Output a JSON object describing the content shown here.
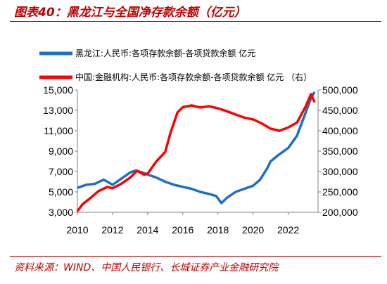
{
  "figure": {
    "title": "图表40：黑龙江与全国净存款余额（亿元）",
    "source": "资料来源：WIND、中国人民银行、长城证券产业金融研究院"
  },
  "chart_data": {
    "type": "line",
    "title": "",
    "xlabel": "",
    "ylabel": "",
    "grid": false,
    "legend_position": "top-left",
    "x_ticks": [
      "2010",
      "2012",
      "2014",
      "2016",
      "2018",
      "2020",
      "2022"
    ],
    "y_left": {
      "lim": [
        3000,
        15000
      ],
      "ticks": [
        "3,000",
        "5,000",
        "7,000",
        "9,000",
        "11,000",
        "13,000",
        "15,000"
      ]
    },
    "y_right": {
      "lim": [
        200000,
        500000
      ],
      "ticks": [
        "200,000",
        "250,000",
        "300,000",
        "350,000",
        "400,000",
        "450,000",
        "500,000"
      ]
    },
    "series": [
      {
        "name": "黑龙江:人民币:各项存款余额-各项贷款余额  亿元",
        "axis": "left",
        "color": "#1f6fc5",
        "x": [
          2010.0,
          2010.5,
          2011.0,
          2011.5,
          2011.8,
          2012.0,
          2012.5,
          2013.0,
          2013.3,
          2013.7,
          2014.0,
          2014.5,
          2015.0,
          2015.5,
          2016.0,
          2016.5,
          2017.0,
          2017.5,
          2017.9,
          2018.2,
          2018.5,
          2019.0,
          2019.5,
          2020.0,
          2020.4,
          2020.8,
          2021.0,
          2021.5,
          2022.0,
          2022.5,
          2023.0,
          2023.3,
          2023.5
        ],
        "values": [
          5400,
          5700,
          5800,
          6200,
          5900,
          5700,
          6300,
          6900,
          7100,
          6900,
          6700,
          6400,
          6000,
          5700,
          5500,
          5300,
          5000,
          4800,
          4600,
          3900,
          4400,
          5000,
          5300,
          5600,
          6200,
          7300,
          8000,
          8700,
          9300,
          10500,
          12800,
          14200,
          14800
        ]
      },
      {
        "name": "中国:金融机构:人民币:各项存款余额-各项贷款余额  亿元 （右）",
        "axis": "right",
        "color": "#ff0000",
        "x": [
          2010.0,
          2010.3,
          2010.8,
          2011.2,
          2011.7,
          2012.0,
          2012.5,
          2013.0,
          2013.4,
          2013.8,
          2014.0,
          2014.5,
          2015.0,
          2015.3,
          2015.7,
          2016.0,
          2016.5,
          2017.0,
          2017.5,
          2018.0,
          2018.5,
          2019.0,
          2019.5,
          2020.0,
          2020.5,
          2021.0,
          2021.5,
          2022.0,
          2022.5,
          2023.0,
          2023.3,
          2023.5
        ],
        "values": [
          203000,
          220000,
          237000,
          252000,
          262000,
          259000,
          270000,
          285000,
          302000,
          292000,
          295000,
          325000,
          348000,
          395000,
          445000,
          458000,
          462000,
          457000,
          460000,
          455000,
          448000,
          440000,
          432000,
          428000,
          418000,
          405000,
          400000,
          408000,
          420000,
          460000,
          490000,
          470000
        ]
      }
    ]
  }
}
